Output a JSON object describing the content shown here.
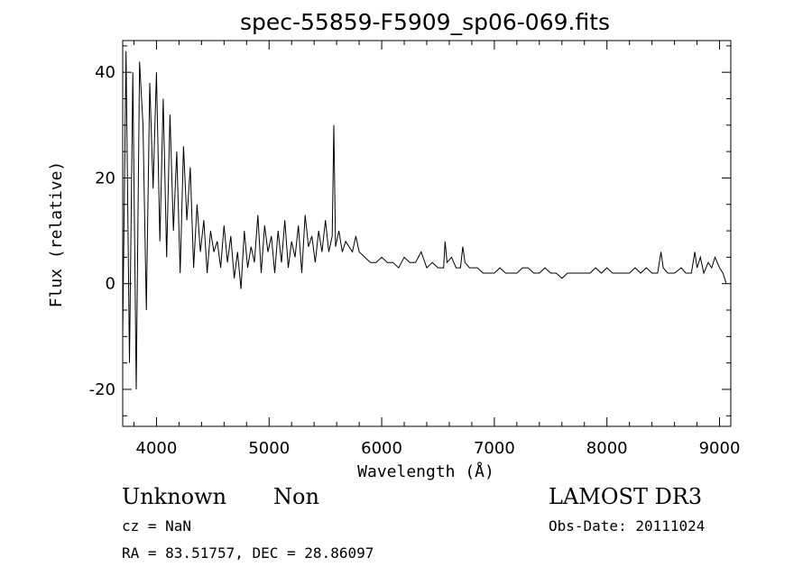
{
  "chart_data": {
    "type": "line",
    "title": "spec-55859-F5909_sp06-069.fits",
    "xlabel": "Wavelength (Å)",
    "ylabel": "Flux (relative)",
    "xlim": [
      3700,
      9100
    ],
    "ylim": [
      -27,
      46
    ],
    "xticks": [
      4000,
      5000,
      6000,
      7000,
      8000,
      9000
    ],
    "yticks": [
      -20,
      0,
      20,
      40
    ],
    "grid": false,
    "series": [
      {
        "x": [
          3700,
          3730,
          3760,
          3790,
          3820,
          3850,
          3880,
          3910,
          3940,
          3970,
          4000,
          4030,
          4060,
          4090,
          4120,
          4150,
          4180,
          4210,
          4240,
          4270,
          4300,
          4330,
          4360,
          4390,
          4420,
          4450,
          4480,
          4510,
          4540,
          4570,
          4600,
          4630,
          4660,
          4690,
          4720,
          4750,
          4780,
          4810,
          4840,
          4870,
          4900,
          4930,
          4960,
          4990,
          5020,
          5050,
          5080,
          5110,
          5140,
          5170,
          5200,
          5230,
          5260,
          5290,
          5320,
          5350,
          5380,
          5410,
          5440,
          5470,
          5500,
          5530,
          5560,
          5575,
          5590,
          5620,
          5650,
          5680,
          5710,
          5740,
          5770,
          5800,
          5850,
          5900,
          5950,
          6000,
          6050,
          6100,
          6150,
          6200,
          6250,
          6300,
          6350,
          6400,
          6450,
          6500,
          6550,
          6563,
          6580,
          6620,
          6660,
          6700,
          6720,
          6740,
          6780,
          6850,
          6900,
          6950,
          7000,
          7050,
          7100,
          7150,
          7200,
          7250,
          7300,
          7350,
          7400,
          7450,
          7500,
          7550,
          7600,
          7650,
          7700,
          7750,
          7800,
          7850,
          7900,
          7950,
          8000,
          8050,
          8100,
          8150,
          8200,
          8250,
          8300,
          8350,
          8400,
          8450,
          8480,
          8500,
          8540,
          8600,
          8660,
          8700,
          8750,
          8780,
          8800,
          8830,
          8860,
          8900,
          8930,
          8960,
          9000,
          9030,
          9060
        ],
        "values": [
          -10,
          44,
          -15,
          40,
          -20,
          42,
          30,
          -5,
          38,
          18,
          40,
          8,
          35,
          5,
          32,
          10,
          25,
          2,
          26,
          12,
          22,
          3,
          15,
          6,
          12,
          2,
          10,
          6,
          8,
          3,
          11,
          4,
          9,
          1,
          6,
          -1,
          10,
          3,
          7,
          4,
          13,
          2,
          11,
          6,
          9,
          2,
          10,
          4,
          12,
          3,
          8,
          5,
          11,
          2,
          13,
          7,
          9,
          4,
          10,
          6,
          12,
          6,
          9,
          30,
          7,
          10,
          6,
          8,
          7,
          6,
          9,
          6,
          5,
          4,
          4,
          5,
          4,
          4,
          3,
          5,
          4,
          4,
          6,
          3,
          4,
          3,
          3,
          8,
          4,
          5,
          3,
          3,
          7,
          4,
          3,
          3,
          2,
          2,
          2,
          3,
          2,
          2,
          2,
          3,
          3,
          2,
          2,
          3,
          2,
          2,
          1,
          2,
          2,
          2,
          2,
          2,
          3,
          2,
          3,
          2,
          2,
          2,
          2,
          3,
          2,
          3,
          2,
          2,
          6,
          3,
          2,
          2,
          3,
          2,
          2,
          6,
          3,
          5,
          2,
          4,
          3,
          5,
          3,
          2,
          0
        ]
      }
    ]
  },
  "info": {
    "object_class": "Unknown",
    "object_subclass": "Non",
    "survey": "LAMOST DR3",
    "cz": "cz = NaN",
    "obs_date": "Obs-Date: 20111024",
    "coords": "RA =  83.51757, DEC =  28.86097"
  }
}
